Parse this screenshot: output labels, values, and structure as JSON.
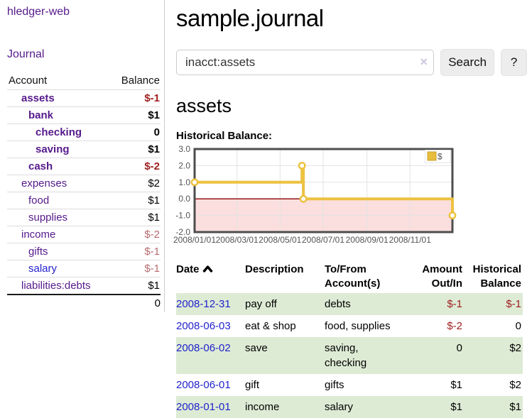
{
  "app": {
    "brand": "hledger-web"
  },
  "nav": {
    "journal": "Journal"
  },
  "sidebar": {
    "headers": {
      "account": "Account",
      "balance": "Balance"
    },
    "accounts": [
      {
        "name": "assets",
        "level": 1,
        "bold": true,
        "balance": "$-1",
        "balance_style": "neg",
        "link_style": "purple"
      },
      {
        "name": "bank",
        "level": 2,
        "bold": true,
        "balance": "$1",
        "balance_style": "pos",
        "link_style": "purple"
      },
      {
        "name": "checking",
        "level": 3,
        "bold": true,
        "balance": "0",
        "balance_style": "pos",
        "link_style": "purple"
      },
      {
        "name": "saving",
        "level": 3,
        "bold": true,
        "balance": "$1",
        "balance_style": "pos",
        "link_style": "purple"
      },
      {
        "name": "cash",
        "level": 2,
        "bold": true,
        "balance": "$-2",
        "balance_style": "neg",
        "link_style": "purple"
      },
      {
        "name": "expenses",
        "level": 1,
        "bold": false,
        "balance": "$2",
        "balance_style": "pos",
        "link_style": "purple"
      },
      {
        "name": "food",
        "level": 2,
        "bold": false,
        "balance": "$1",
        "balance_style": "pos",
        "link_style": "purple"
      },
      {
        "name": "supplies",
        "level": 2,
        "bold": false,
        "balance": "$1",
        "balance_style": "pos",
        "link_style": "purple"
      },
      {
        "name": "income",
        "level": 1,
        "bold": false,
        "balance": "$-2",
        "balance_style": "neg-light",
        "link_style": "purple"
      },
      {
        "name": "gifts",
        "level": 2,
        "bold": false,
        "balance": "$-1",
        "balance_style": "neg-light",
        "link_style": "purple"
      },
      {
        "name": "salary",
        "level": 2,
        "bold": false,
        "balance": "$-1",
        "balance_style": "neg-light",
        "link_style": "blue"
      },
      {
        "name": "liabilities:debts",
        "level": 1,
        "bold": false,
        "balance": "$1",
        "balance_style": "pos",
        "link_style": "purple"
      }
    ],
    "total": "0"
  },
  "header": {
    "title": "sample.journal"
  },
  "search": {
    "value": "inacct:assets",
    "clear_icon": "×",
    "button_label": "Search",
    "help_label": "?"
  },
  "account_page": {
    "heading": "assets",
    "chart_label": "Historical Balance:"
  },
  "chart_data": {
    "type": "line",
    "title": "Historical Balance",
    "ylim": [
      -2,
      3
    ],
    "yticks": [
      3,
      2,
      1,
      0,
      -1,
      -2
    ],
    "ytick_labels": [
      "3.0",
      "2.0",
      "1.0",
      "0.0",
      "-1.0",
      "-2.0"
    ],
    "x_is_days_since": "2008-01-01",
    "x_max_days": 365,
    "xtick_days": [
      0,
      60,
      121,
      182,
      244,
      305
    ],
    "xtick_labels": [
      "2008/01/01",
      "2008/03/01",
      "2008/05/01",
      "2008/07/01",
      "2008/09/01",
      "2008/11/01"
    ],
    "grid": true,
    "negative_region_fill": "#fbdede",
    "zero_line_color": "#8b0000",
    "axis_text_color": "#545454",
    "grid_color": "#e3e3e3",
    "border_color": "#4d4d4d",
    "legend": {
      "label": "$",
      "position": "top-right",
      "swatch_fill": "#e8bd3e",
      "swatch_stroke": "#c7a02e"
    },
    "series": [
      {
        "name": "$",
        "color": "#edc240",
        "points_day_value": [
          [
            0,
            1
          ],
          [
            152,
            1
          ],
          [
            152,
            2
          ],
          [
            154,
            2
          ],
          [
            154,
            0
          ],
          [
            365,
            0
          ],
          [
            365,
            -1
          ]
        ],
        "markers_day_value": [
          [
            0,
            1
          ],
          [
            152,
            2
          ],
          [
            154,
            0
          ],
          [
            365,
            -1
          ]
        ]
      }
    ]
  },
  "transactions": {
    "headers": {
      "date": "Date",
      "description": "Description",
      "tofrom1": "To/From",
      "tofrom2": "Account(s)",
      "amount1": "Amount",
      "amount2": "Out/In",
      "balance1": "Historical",
      "balance2": "Balance"
    },
    "rows": [
      {
        "date": "2008-12-31",
        "description": "pay off",
        "accounts": "debts",
        "amount": "$-1",
        "amount_neg": true,
        "balance": "$-1",
        "balance_neg": true,
        "green": true
      },
      {
        "date": "2008-06-03",
        "description": "eat & shop",
        "accounts": "food, supplies",
        "amount": "$-2",
        "amount_neg": true,
        "balance": "0",
        "balance_neg": false,
        "green": false
      },
      {
        "date": "2008-06-02",
        "description": "save",
        "accounts": "saving, checking",
        "amount": "0",
        "amount_neg": false,
        "balance": "$2",
        "balance_neg": false,
        "green": true
      },
      {
        "date": "2008-06-01",
        "description": "gift",
        "accounts": "gifts",
        "amount": "$1",
        "amount_neg": false,
        "balance": "$2",
        "balance_neg": false,
        "green": false
      },
      {
        "date": "2008-01-01",
        "description": "income",
        "accounts": "salary",
        "amount": "$1",
        "amount_neg": false,
        "balance": "$1",
        "balance_neg": false,
        "green": true
      }
    ]
  },
  "colors": {
    "link_purple": "#551a8b",
    "link_blue": "#2222cc",
    "negative": "#9e1e1e",
    "negative_light": "#b76b6f",
    "row_green": "#ddebd5",
    "series_gold": "#edc240"
  }
}
